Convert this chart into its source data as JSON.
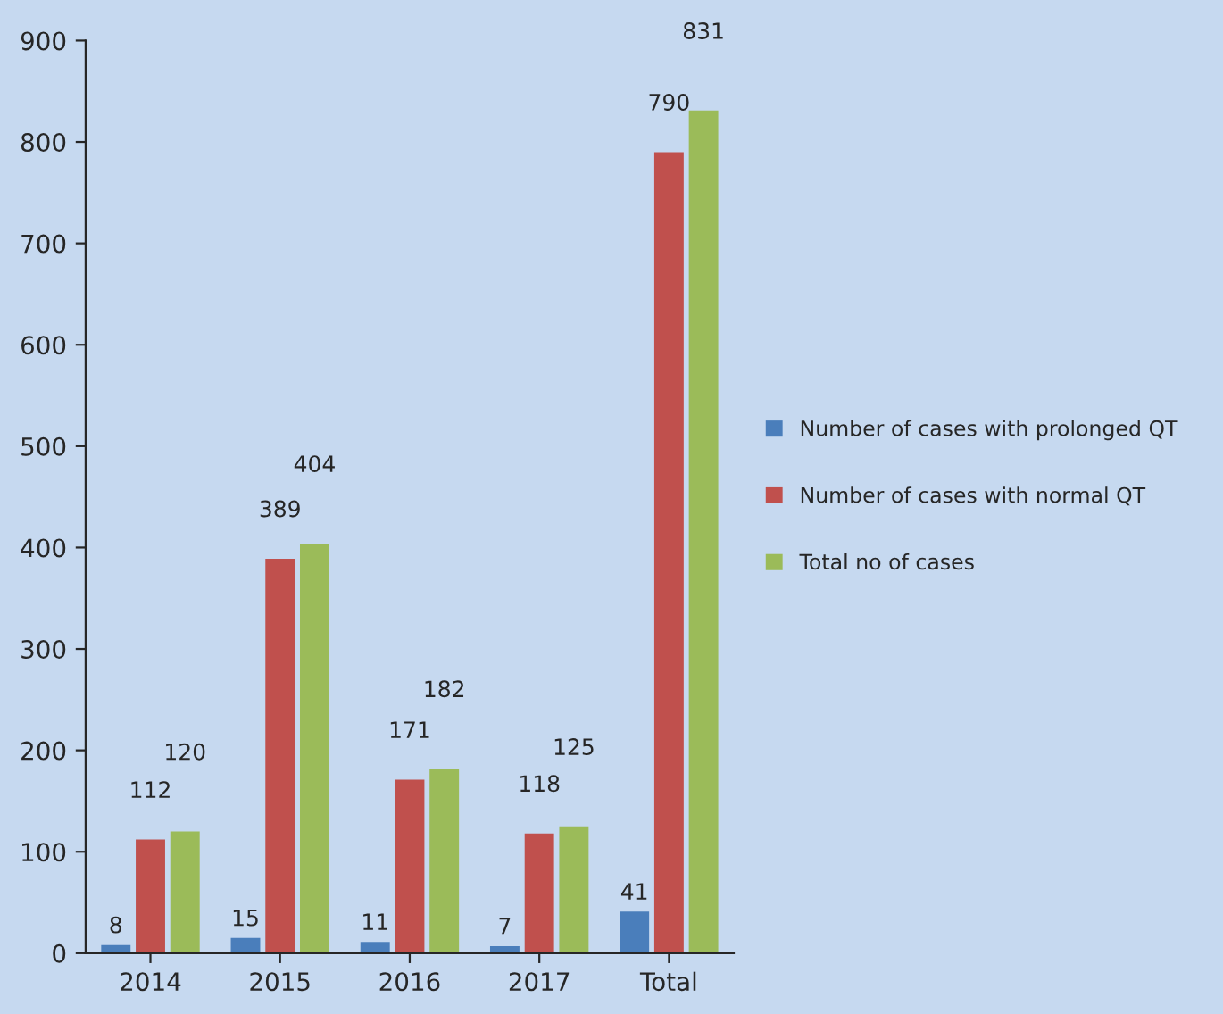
{
  "chart_data": {
    "type": "bar",
    "categories": [
      "2014",
      "2015",
      "2016",
      "2017",
      "Total"
    ],
    "series": [
      {
        "name": "Number of cases with prolonged QT",
        "color": "#4a7ebb",
        "values": [
          8,
          15,
          11,
          7,
          41
        ]
      },
      {
        "name": "Number of cases with normal QT",
        "color": "#c0504d",
        "values": [
          112,
          389,
          171,
          118,
          790
        ]
      },
      {
        "name": "Total no of cases",
        "color": "#9bbb59",
        "values": [
          120,
          404,
          182,
          125,
          831
        ]
      }
    ],
    "ylim": [
      0,
      900
    ],
    "yticks": [
      0,
      100,
      200,
      300,
      400,
      500,
      600,
      700,
      800,
      900
    ],
    "data_labels": true,
    "grid": false,
    "legend": "right"
  }
}
